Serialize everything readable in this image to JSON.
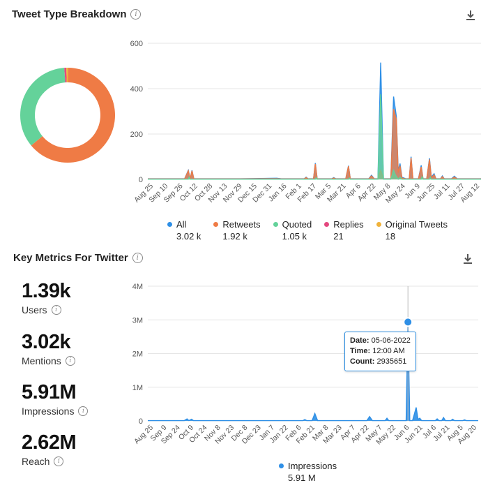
{
  "tweet_breakdown": {
    "title": "Tweet Type Breakdown",
    "legend": [
      {
        "name": "All",
        "count": "3.02 k",
        "color": "#2e8fe6"
      },
      {
        "name": "Retweets",
        "count": "1.92 k",
        "color": "#ef7b45"
      },
      {
        "name": "Quoted",
        "count": "1.05 k",
        "color": "#64d29a"
      },
      {
        "name": "Replies",
        "count": "21",
        "color": "#e4487f"
      },
      {
        "name": "Original Tweets",
        "count": "18",
        "color": "#f0b23a"
      }
    ]
  },
  "key_metrics": {
    "title": "Key Metrics For Twitter",
    "metrics": [
      {
        "value": "1.39k",
        "label": "Users"
      },
      {
        "value": "3.02k",
        "label": "Mentions"
      },
      {
        "value": "5.91M",
        "label": "Impressions"
      },
      {
        "value": "2.62M",
        "label": "Reach"
      }
    ],
    "legend": {
      "name": "Impressions",
      "count": "5.91 M",
      "color": "#2e8fe6"
    },
    "tooltip": {
      "date_label": "Date:",
      "date": "05-06-2022",
      "time_label": "Time:",
      "time": "12:00 AM",
      "count_label": "Count:",
      "count": "2935651"
    }
  },
  "chart_data": [
    {
      "type": "pie",
      "variant": "donut",
      "title": "Tweet Type Breakdown",
      "labels": [
        "Retweets",
        "Quoted",
        "Replies",
        "Original Tweets"
      ],
      "values": [
        1920,
        1050,
        21,
        18
      ],
      "colors": [
        "#ef7b45",
        "#64d29a",
        "#e4487f",
        "#f0b23a"
      ]
    },
    {
      "type": "area",
      "title": "Tweet Type Breakdown",
      "ylim": [
        0,
        600
      ],
      "yticks": [
        0,
        200,
        400,
        600
      ],
      "x_tick_labels": [
        "Aug 25",
        "Sep 10",
        "Sep 26",
        "Oct 12",
        "Oct 28",
        "Nov 13",
        "Nov 29",
        "Dec 15",
        "Dec 31",
        "Jan 16",
        "Feb 1",
        "Feb 17",
        "Mar 5",
        "Mar 21",
        "Apr 6",
        "Apr 22",
        "May 8",
        "May 24",
        "Jun 9",
        "Jun 25",
        "Jul 11",
        "Jul 27",
        "Aug 12"
      ],
      "x_domain": [
        0,
        362
      ],
      "series": [
        {
          "name": "All",
          "color": "#2e8fe6",
          "points": [
            [
              0,
              3
            ],
            [
              40,
              3
            ],
            [
              44,
              40
            ],
            [
              46,
              3
            ],
            [
              48,
              40
            ],
            [
              50,
              3
            ],
            [
              100,
              3
            ],
            [
              140,
              5
            ],
            [
              145,
              3
            ],
            [
              170,
              3
            ],
            [
              172,
              10
            ],
            [
              174,
              3
            ],
            [
              180,
              3
            ],
            [
              182,
              72
            ],
            [
              184,
              3
            ],
            [
              200,
              3
            ],
            [
              202,
              8
            ],
            [
              204,
              3
            ],
            [
              215,
              3
            ],
            [
              218,
              60
            ],
            [
              220,
              3
            ],
            [
              240,
              3
            ],
            [
              243,
              18
            ],
            [
              246,
              3
            ],
            [
              250,
              3
            ],
            [
              253,
              515
            ],
            [
              256,
              3
            ],
            [
              264,
              3
            ],
            [
              267,
              365
            ],
            [
              270,
              278
            ],
            [
              272,
              40
            ],
            [
              274,
              70
            ],
            [
              276,
              10
            ],
            [
              280,
              3
            ],
            [
              284,
              3
            ],
            [
              286,
              100
            ],
            [
              288,
              3
            ],
            [
              294,
              3
            ],
            [
              297,
              62
            ],
            [
              299,
              3
            ],
            [
              303,
              3
            ],
            [
              306,
              93
            ],
            [
              308,
              10
            ],
            [
              311,
              25
            ],
            [
              313,
              3
            ],
            [
              318,
              3
            ],
            [
              320,
              15
            ],
            [
              322,
              3
            ],
            [
              330,
              3
            ],
            [
              333,
              14
            ],
            [
              336,
              3
            ],
            [
              362,
              3
            ]
          ]
        },
        {
          "name": "Retweets",
          "color": "#ef7b45",
          "points": [
            [
              0,
              2
            ],
            [
              40,
              2
            ],
            [
              44,
              38
            ],
            [
              46,
              2
            ],
            [
              48,
              38
            ],
            [
              50,
              2
            ],
            [
              100,
              2
            ],
            [
              140,
              3
            ],
            [
              145,
              2
            ],
            [
              170,
              2
            ],
            [
              172,
              8
            ],
            [
              174,
              2
            ],
            [
              180,
              2
            ],
            [
              182,
              68
            ],
            [
              184,
              2
            ],
            [
              200,
              2
            ],
            [
              202,
              6
            ],
            [
              204,
              2
            ],
            [
              215,
              2
            ],
            [
              218,
              58
            ],
            [
              220,
              2
            ],
            [
              240,
              2
            ],
            [
              243,
              15
            ],
            [
              246,
              2
            ],
            [
              250,
              2
            ],
            [
              253,
              40
            ],
            [
              256,
              2
            ],
            [
              264,
              2
            ],
            [
              267,
              310
            ],
            [
              270,
              265
            ],
            [
              272,
              30
            ],
            [
              274,
              60
            ],
            [
              276,
              6
            ],
            [
              280,
              2
            ],
            [
              284,
              2
            ],
            [
              286,
              95
            ],
            [
              288,
              2
            ],
            [
              294,
              2
            ],
            [
              297,
              55
            ],
            [
              299,
              2
            ],
            [
              303,
              2
            ],
            [
              306,
              88
            ],
            [
              308,
              6
            ],
            [
              311,
              20
            ],
            [
              313,
              2
            ],
            [
              318,
              2
            ],
            [
              320,
              12
            ],
            [
              322,
              2
            ],
            [
              330,
              2
            ],
            [
              333,
              10
            ],
            [
              336,
              2
            ],
            [
              362,
              2
            ]
          ]
        },
        {
          "name": "Quoted",
          "color": "#64d29a",
          "points": [
            [
              0,
              1
            ],
            [
              44,
              1
            ],
            [
              45,
              10
            ],
            [
              46,
              1
            ],
            [
              182,
              1
            ],
            [
              183,
              8
            ],
            [
              184,
              1
            ],
            [
              218,
              1
            ],
            [
              219,
              6
            ],
            [
              220,
              1
            ],
            [
              250,
              1
            ],
            [
              253,
              375
            ],
            [
              256,
              1
            ],
            [
              264,
              1
            ],
            [
              267,
              40
            ],
            [
              269,
              20
            ],
            [
              272,
              1
            ],
            [
              274,
              10
            ],
            [
              276,
              1
            ],
            [
              297,
              1
            ],
            [
              298,
              12
            ],
            [
              299,
              1
            ],
            [
              306,
              1
            ],
            [
              307,
              10
            ],
            [
              308,
              1
            ],
            [
              362,
              1
            ]
          ]
        }
      ]
    },
    {
      "type": "area",
      "title": "Key Metrics For Twitter",
      "ylim": [
        0,
        4000000
      ],
      "yticks": [
        0,
        1000000,
        2000000,
        3000000,
        4000000
      ],
      "ytick_labels": [
        "0",
        "1M",
        "2M",
        "3M",
        "4M"
      ],
      "x_tick_labels": [
        "Aug 25",
        "Sep 9",
        "Sep 24",
        "Oct 9",
        "Oct 24",
        "Nov 8",
        "Nov 23",
        "Dec 8",
        "Dec 23",
        "Jan 7",
        "Jan 22",
        "Feb 6",
        "Feb 21",
        "Mar 8",
        "Mar 23",
        "Apr 7",
        "Apr 22",
        "May 7",
        "May 22",
        "Jun 6",
        "Jun 21",
        "Jul 6",
        "Jul 21",
        "Aug 5",
        "Aug 20"
      ],
      "x_domain": [
        0,
        362
      ],
      "series": [
        {
          "name": "Impressions",
          "color": "#2e8fe6",
          "points": [
            [
              0,
              10000
            ],
            [
              40,
              10000
            ],
            [
              43,
              60000
            ],
            [
              45,
              10000
            ],
            [
              48,
              50000
            ],
            [
              50,
              10000
            ],
            [
              100,
              10000
            ],
            [
              170,
              10000
            ],
            [
              172,
              40000
            ],
            [
              174,
              10000
            ],
            [
              180,
              10000
            ],
            [
              183,
              220000
            ],
            [
              186,
              10000
            ],
            [
              240,
              10000
            ],
            [
              243,
              130000
            ],
            [
              246,
              10000
            ],
            [
              260,
              10000
            ],
            [
              262,
              80000
            ],
            [
              264,
              10000
            ],
            [
              283,
              10000
            ],
            [
              285,
              2935651
            ],
            [
              287,
              10000
            ],
            [
              290,
              10000
            ],
            [
              292,
              200000
            ],
            [
              294,
              400000
            ],
            [
              296,
              50000
            ],
            [
              298,
              80000
            ],
            [
              300,
              10000
            ],
            [
              315,
              10000
            ],
            [
              317,
              60000
            ],
            [
              319,
              10000
            ],
            [
              322,
              10000
            ],
            [
              324,
              100000
            ],
            [
              326,
              10000
            ],
            [
              332,
              10000
            ],
            [
              334,
              50000
            ],
            [
              336,
              10000
            ],
            [
              345,
              10000
            ],
            [
              347,
              30000
            ],
            [
              349,
              10000
            ],
            [
              362,
              10000
            ]
          ]
        }
      ],
      "highlight": {
        "x": 285,
        "y": 2935651
      }
    }
  ]
}
